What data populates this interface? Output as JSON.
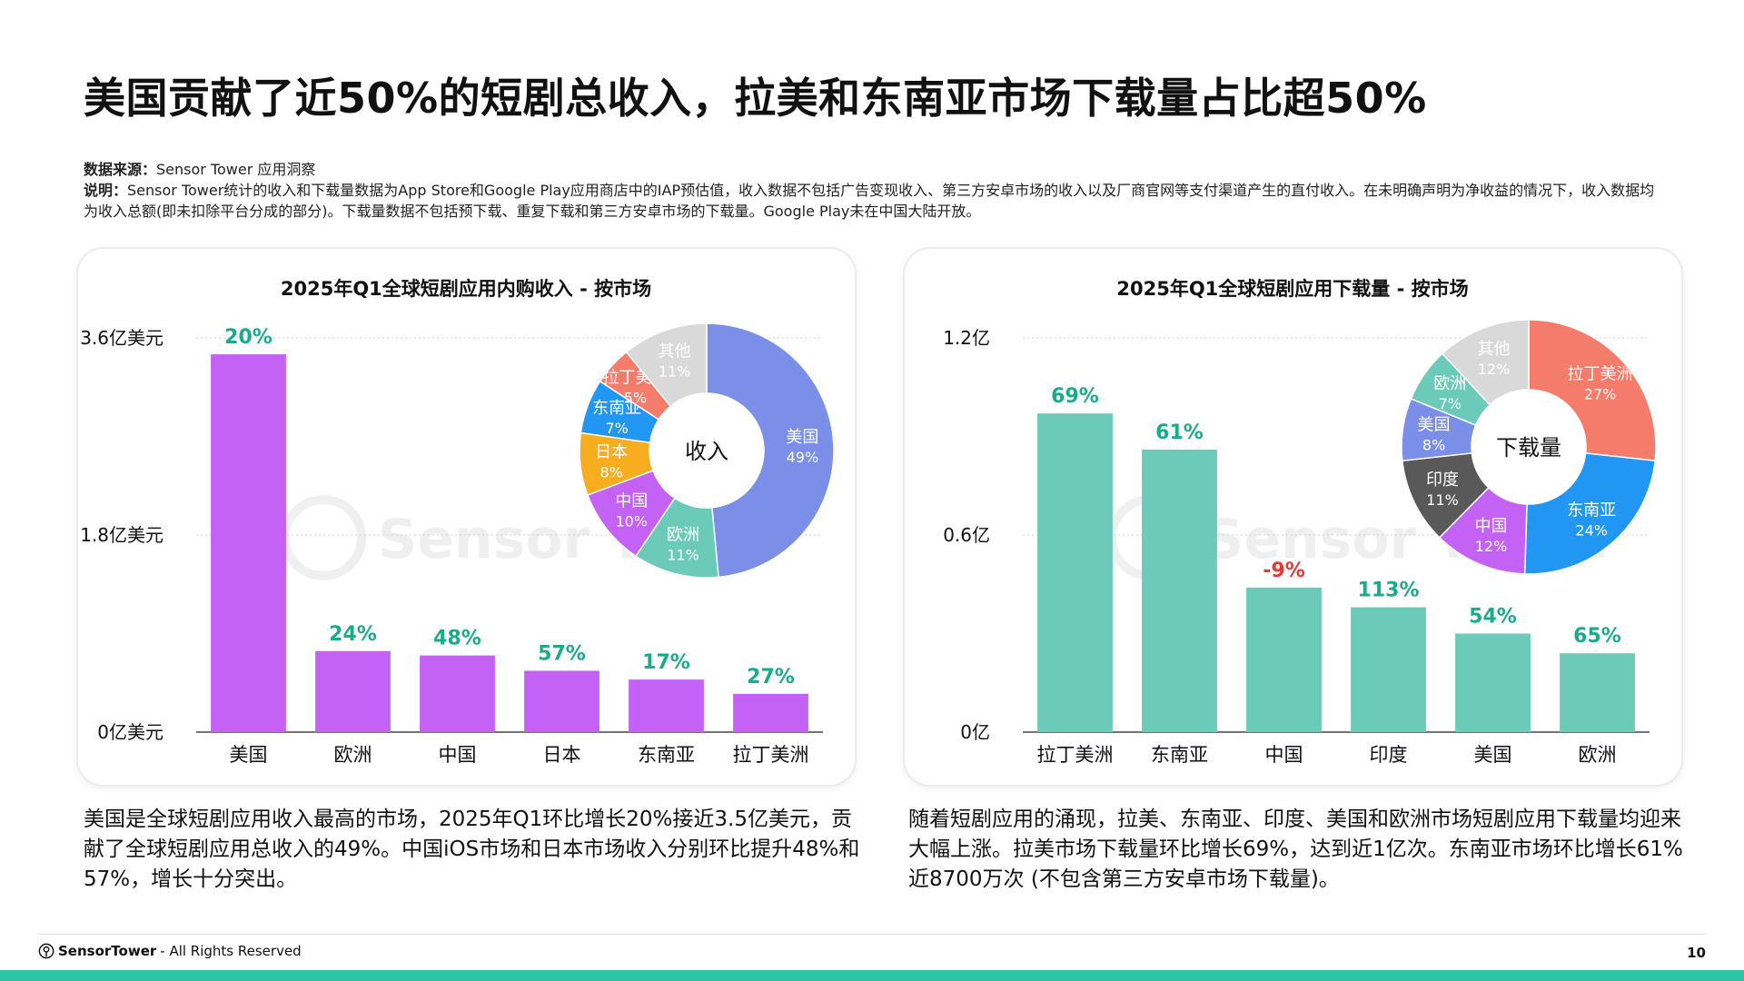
{
  "title": "美国贡献了近50%的短剧总收入，拉美和东南亚市场下载量占比超50%",
  "source_label": "数据来源：",
  "source_text": "Sensor Tower 应用洞察",
  "note_label": "说明：",
  "note_text": "Sensor Tower统计的收入和下载量数据为App Store和Google Play应用商店中的IAP预估值，收入数据不包括广告变现收入、第三方安卓市场的收入以及厂商官网等支付渠道产生的直付收入。在未明确声明为净收益的情况下，收入数据均为收入总额(即未扣除平台分成的部分)。下载量数据不包括预下载、重复下载和第三方安卓市场的下载量。Google Play未在中国大陆开放。",
  "watermark": "Sensor Tower",
  "caption_left": "美国是全球短剧应用收入最高的市场，2025年Q1环比增长20%接近3.5亿美元，贡献了全球短剧应用总收入的49%。中国iOS市场和日本市场收入分别环比提升48%和57%，增长十分突出。",
  "caption_right": "随着短剧应用的涌现，拉美、东南亚、印度、美国和欧洲市场短剧应用下载量均迎来大幅上涨。拉美市场下载量环比增长69%，达到近1亿次。东南亚市场环比增长61%近8700万次 (不包含第三方安卓市场下载量)。",
  "footer": {
    "brand": "SensorTower",
    "brand_suffix": " - All Rights Reserved",
    "page_number": "10"
  },
  "colors": {
    "accent": "#2cc5a6",
    "growth_positive": "#1aab8a",
    "growth_negative": "#e53935",
    "revenue_bar": "#c462f5",
    "downloads_bar": "#6ccbb8"
  },
  "chart_data": [
    {
      "type": "bar",
      "title": "2025年Q1全球短剧应用内购收入 - 按市场",
      "categories": [
        "美国",
        "欧洲",
        "中国",
        "日本",
        "东南亚",
        "拉丁美洲"
      ],
      "values": [
        3.45,
        0.74,
        0.7,
        0.56,
        0.48,
        0.35
      ],
      "growth_labels": [
        "20%",
        "24%",
        "48%",
        "57%",
        "17%",
        "27%"
      ],
      "growth_negative": [
        false,
        false,
        false,
        false,
        false,
        false
      ],
      "ylim": [
        0,
        3.6
      ],
      "yticks": [
        "0亿美元",
        "1.8亿美元",
        "3.6亿美元"
      ],
      "grid": true,
      "bar_color": "#c462f5",
      "inset_pie": {
        "type": "pie",
        "center_label": "收入",
        "slices": [
          {
            "label": "美国",
            "value": 49,
            "text": "49%",
            "color": "#7b8ee8"
          },
          {
            "label": "欧洲",
            "value": 11,
            "text": "11%",
            "color": "#6ccbb8"
          },
          {
            "label": "中国",
            "value": 10,
            "text": "10%",
            "color": "#c462f5"
          },
          {
            "label": "日本",
            "value": 8,
            "text": "8%",
            "color": "#f7ad1d"
          },
          {
            "label": "东南亚",
            "value": 7,
            "text": "7%",
            "color": "#2196f3"
          },
          {
            "label": "拉丁美洲",
            "value": 5,
            "text": "5%",
            "color": "#f57b6b"
          },
          {
            "label": "其他",
            "value": 11,
            "text": "11%",
            "color": "#d9d9d9"
          }
        ]
      }
    },
    {
      "type": "bar",
      "title": "2025年Q1全球短剧应用下载量 - 按市场",
      "categories": [
        "拉丁美洲",
        "东南亚",
        "中国",
        "印度",
        "美国",
        "欧洲"
      ],
      "values": [
        0.97,
        0.86,
        0.44,
        0.38,
        0.3,
        0.24
      ],
      "growth_labels": [
        "69%",
        "61%",
        "-9%",
        "113%",
        "54%",
        "65%"
      ],
      "growth_negative": [
        false,
        false,
        true,
        false,
        false,
        false
      ],
      "ylim": [
        0,
        1.2
      ],
      "yticks": [
        "0亿",
        "0.6亿",
        "1.2亿"
      ],
      "grid": true,
      "bar_color": "#6ccbb8",
      "inset_pie": {
        "type": "pie",
        "center_label": "下载量",
        "slices": [
          {
            "label": "拉丁美洲",
            "value": 27,
            "text": "27%",
            "color": "#f57b6b"
          },
          {
            "label": "东南亚",
            "value": 24,
            "text": "24%",
            "color": "#2196f3"
          },
          {
            "label": "中国",
            "value": 12,
            "text": "12%",
            "color": "#c462f5"
          },
          {
            "label": "印度",
            "value": 11,
            "text": "11%",
            "color": "#595959"
          },
          {
            "label": "美国",
            "value": 8,
            "text": "8%",
            "color": "#7b8ee8"
          },
          {
            "label": "欧洲",
            "value": 7,
            "text": "7%",
            "color": "#6ccbb8"
          },
          {
            "label": "其他",
            "value": 12,
            "text": "12%",
            "color": "#d9d9d9"
          }
        ]
      }
    }
  ]
}
